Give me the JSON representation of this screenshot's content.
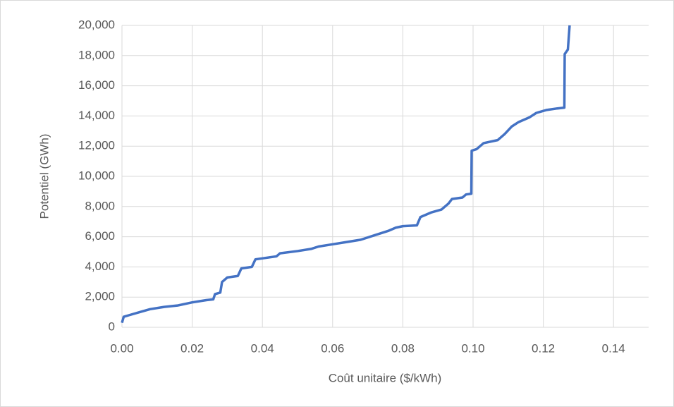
{
  "chart_data": {
    "type": "line",
    "xlabel": "Coût unitaire ($/kWh)",
    "ylabel": "Potentiel (GWh)",
    "x": [
      0,
      0.0005,
      0.002,
      0.005,
      0.008,
      0.012,
      0.016,
      0.018,
      0.02,
      0.024,
      0.026,
      0.0265,
      0.028,
      0.0285,
      0.03,
      0.033,
      0.034,
      0.037,
      0.038,
      0.041,
      0.044,
      0.045,
      0.05,
      0.054,
      0.056,
      0.06,
      0.064,
      0.068,
      0.072,
      0.076,
      0.078,
      0.08,
      0.084,
      0.085,
      0.088,
      0.091,
      0.093,
      0.094,
      0.097,
      0.098,
      0.0995,
      0.0996,
      0.101,
      0.103,
      0.107,
      0.109,
      0.111,
      0.113,
      0.116,
      0.118,
      0.121,
      0.124,
      0.126,
      0.1261,
      0.127,
      0.1275
    ],
    "series": [
      {
        "name": "Potentiel",
        "color": "#4472c4",
        "values": [
          300,
          700,
          800,
          1000,
          1200,
          1350,
          1450,
          1550,
          1650,
          1800,
          1850,
          2200,
          2300,
          3000,
          3300,
          3400,
          3900,
          4000,
          4500,
          4600,
          4700,
          4900,
          5050,
          5200,
          5350,
          5500,
          5650,
          5800,
          6100,
          6400,
          6600,
          6700,
          6750,
          7300,
          7600,
          7800,
          8200,
          8500,
          8600,
          8800,
          8850,
          11700,
          11800,
          12200,
          12400,
          12800,
          13300,
          13600,
          13900,
          14200,
          14400,
          14500,
          14550,
          18100,
          18400,
          20000
        ]
      }
    ],
    "xlim": [
      0,
      0.15
    ],
    "xticks": [
      {
        "value": 0,
        "label": "0.00"
      },
      0.02,
      0.04,
      0.06,
      0.08,
      {
        "value": 0.1,
        "label": "0.10"
      },
      0.12,
      0.14
    ],
    "ylim": [
      0,
      20000
    ],
    "yticks": [
      0,
      {
        "value": 2000,
        "label": "2,000"
      },
      {
        "value": 4000,
        "label": "4,000"
      },
      {
        "value": 6000,
        "label": "6,000"
      },
      {
        "value": 8000,
        "label": "8,000"
      },
      {
        "value": 10000,
        "label": "10,000"
      },
      {
        "value": 12000,
        "label": "12,000"
      },
      {
        "value": 14000,
        "label": "14,000"
      },
      {
        "value": 16000,
        "label": "16,000"
      },
      {
        "value": 18000,
        "label": "18,000"
      },
      {
        "value": 20000,
        "label": "20,000"
      }
    ],
    "grid": true
  }
}
